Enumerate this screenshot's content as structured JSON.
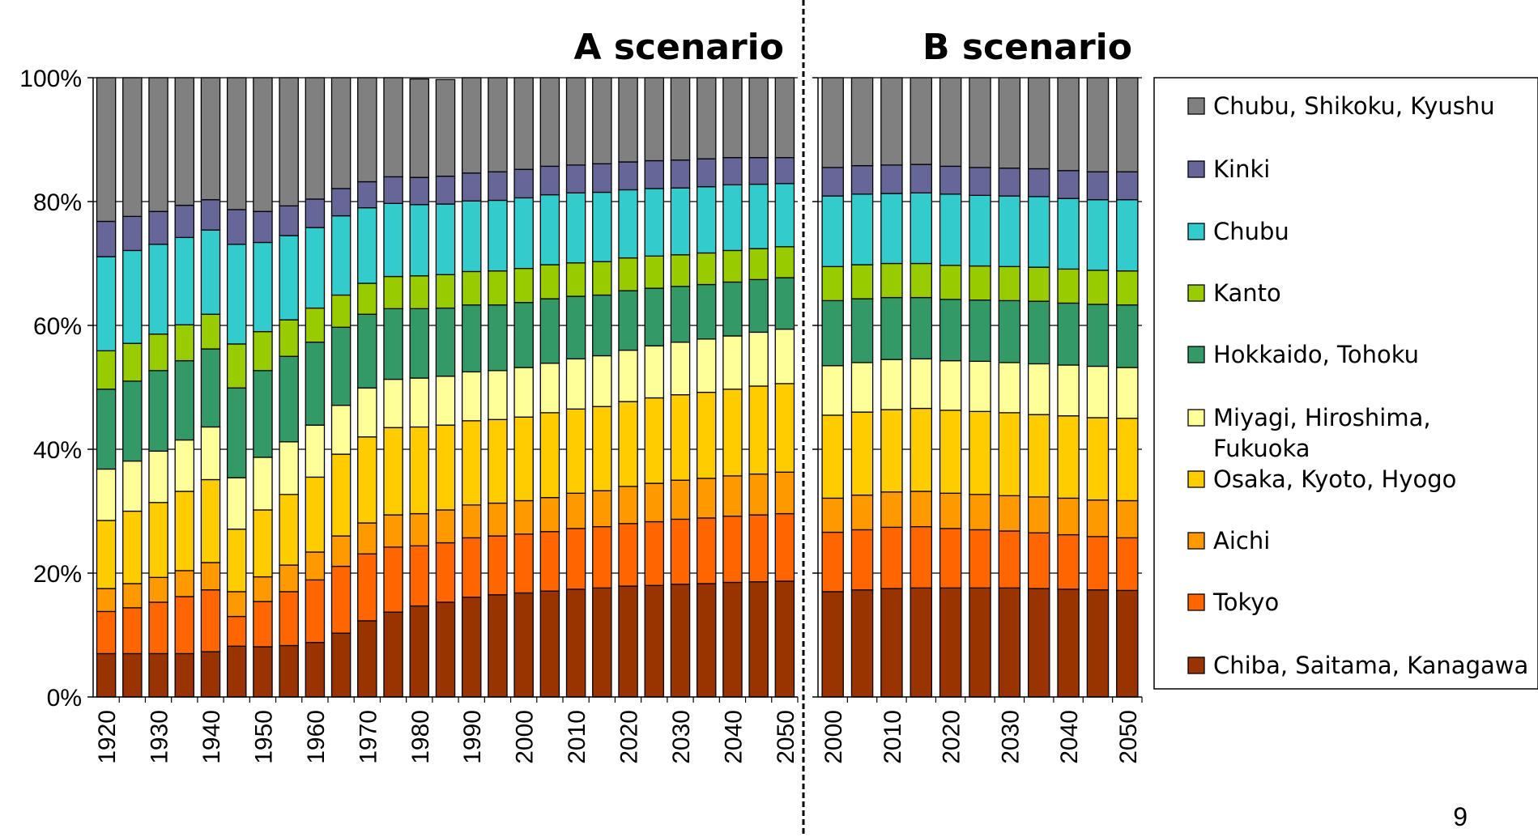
{
  "page": {
    "number": "9"
  },
  "colors": {
    "Chiba, Saitama, Kanagawa": "#993300",
    "Tokyo": "#ff6600",
    "Aichi": "#ff9900",
    "Osaka, Kyoto, Hyogo": "#ffcc00",
    "Miyagi, Hiroshima, Fukuoka": "#ffff99",
    "Hokkaido, Tohoku": "#339966",
    "Kanto": "#99cc00",
    "Chubu": "#33cccc",
    "Kinki": "#666699",
    "Chubu, Shikoku, Kyushu": "#808080"
  },
  "legend": {
    "items": [
      {
        "label": "Chubu, Shikoku, Kyushu",
        "lines": [
          "Chubu, Shikoku, Kyushu"
        ]
      },
      {
        "label": "Kinki",
        "lines": [
          "Kinki"
        ]
      },
      {
        "label": "Chubu",
        "lines": [
          "Chubu"
        ]
      },
      {
        "label": "Kanto",
        "lines": [
          "Kanto"
        ]
      },
      {
        "label": "Hokkaido, Tohoku",
        "lines": [
          "Hokkaido, Tohoku"
        ]
      },
      {
        "label": "Miyagi, Hiroshima, Fukuoka",
        "lines": [
          "Miyagi, Hiroshima,",
          "Fukuoka"
        ]
      },
      {
        "label": "Osaka, Kyoto, Hyogo",
        "lines": [
          "Osaka, Kyoto, Hyogo"
        ]
      },
      {
        "label": "Aichi",
        "lines": [
          "Aichi"
        ]
      },
      {
        "label": "Tokyo",
        "lines": [
          "Tokyo"
        ]
      },
      {
        "label": "Chiba, Saitama, Kanagawa",
        "lines": [
          "Chiba, Saitama, Kanagawa"
        ]
      }
    ]
  },
  "chart_data": [
    {
      "type": "bar",
      "stacked": "percent",
      "title": "A scenario",
      "ylim": [
        0,
        100
      ],
      "yticks": [
        "0%",
        "20%",
        "40%",
        "60%",
        "80%",
        "100%"
      ],
      "xtick_labels": [
        "1920",
        "1930",
        "1940",
        "1950",
        "1960",
        "1970",
        "1980",
        "1990",
        "2000",
        "2010",
        "2020",
        "2030",
        "2040",
        "2050"
      ],
      "categories": [
        1920,
        1925,
        1930,
        1935,
        1940,
        1945,
        1950,
        1955,
        1960,
        1965,
        1970,
        1975,
        1980,
        1985,
        1990,
        1995,
        2000,
        2005,
        2010,
        2015,
        2020,
        2025,
        2030,
        2035,
        2040,
        2045,
        2050
      ],
      "series": [
        {
          "name": "Chiba, Saitama, Kanagawa",
          "values": [
            7,
            7,
            7,
            7,
            7.3,
            8.2,
            8.1,
            8.3,
            8.8,
            10.3,
            12.3,
            13.7,
            14.7,
            15.3,
            16.1,
            16.5,
            16.8,
            17.1,
            17.4,
            17.6,
            17.9,
            18.0,
            18.2,
            18.3,
            18.5,
            18.6,
            18.7
          ]
        },
        {
          "name": "Tokyo",
          "values": [
            6.8,
            7.4,
            8.3,
            9.2,
            10.0,
            4.8,
            7.3,
            8.7,
            10.1,
            10.8,
            10.8,
            10.5,
            9.7,
            9.6,
            9.6,
            9.5,
            9.5,
            9.6,
            9.8,
            9.9,
            10.1,
            10.3,
            10.5,
            10.6,
            10.7,
            10.8,
            10.9
          ]
        },
        {
          "name": "Aichi",
          "values": [
            3.7,
            3.9,
            4.0,
            4.2,
            4.4,
            4.0,
            4.0,
            4.3,
            4.5,
            4.9,
            5.0,
            5.2,
            5.2,
            5.3,
            5.3,
            5.3,
            5.4,
            5.5,
            5.7,
            5.8,
            6.0,
            6.2,
            6.3,
            6.4,
            6.5,
            6.6,
            6.7
          ]
        },
        {
          "name": "Osaka, Kyoto, Hyogo",
          "values": [
            11.0,
            11.7,
            12.1,
            12.8,
            13.4,
            10.1,
            10.8,
            11.4,
            12.1,
            13.2,
            13.9,
            14.1,
            14.0,
            13.7,
            13.6,
            13.5,
            13.5,
            13.7,
            13.6,
            13.6,
            13.7,
            13.8,
            13.8,
            13.9,
            14.0,
            14.2,
            14.3
          ]
        },
        {
          "name": "Miyagi, Hiroshima, Fukuoka",
          "values": [
            8.3,
            8.1,
            8.3,
            8.3,
            8.5,
            8.3,
            8.5,
            8.5,
            8.4,
            7.9,
            7.9,
            7.8,
            7.9,
            7.9,
            7.9,
            7.9,
            8.0,
            8.0,
            8.1,
            8.2,
            8.3,
            8.4,
            8.5,
            8.6,
            8.6,
            8.7,
            8.8
          ]
        },
        {
          "name": "Hokkaido, Tohoku",
          "values": [
            12.9,
            12.9,
            13.0,
            12.8,
            12.6,
            14.5,
            14.0,
            13.8,
            13.4,
            12.6,
            11.9,
            11.4,
            11.2,
            11.0,
            10.8,
            10.6,
            10.5,
            10.4,
            10.1,
            9.8,
            9.6,
            9.3,
            9.0,
            8.8,
            8.7,
            8.5,
            8.3
          ]
        },
        {
          "name": "Kanto",
          "values": [
            6.2,
            6.1,
            5.9,
            5.8,
            5.6,
            7.1,
            6.3,
            5.9,
            5.5,
            5.2,
            5.0,
            5.2,
            5.3,
            5.4,
            5.4,
            5.5,
            5.5,
            5.5,
            5.4,
            5.4,
            5.3,
            5.2,
            5.1,
            5.1,
            5.1,
            5.0,
            5.0
          ]
        },
        {
          "name": "Chubu",
          "values": [
            15.2,
            15.0,
            14.5,
            14.1,
            13.6,
            16.1,
            14.4,
            13.6,
            13.0,
            12.8,
            12.2,
            11.8,
            11.5,
            11.4,
            11.4,
            11.4,
            11.4,
            11.3,
            11.3,
            11.2,
            11.0,
            10.9,
            10.8,
            10.7,
            10.6,
            10.4,
            10.2
          ]
        },
        {
          "name": "Kinki",
          "values": [
            5.7,
            5.5,
            5.3,
            5.2,
            4.9,
            5.6,
            5.0,
            4.8,
            4.6,
            4.4,
            4.2,
            4.3,
            4.4,
            4.5,
            4.5,
            4.6,
            4.6,
            4.6,
            4.5,
            4.6,
            4.5,
            4.5,
            4.5,
            4.5,
            4.4,
            4.3,
            4.2
          ]
        },
        {
          "name": "Chubu, Shikoku, Kyushu",
          "values": [
            23.2,
            22.4,
            21.6,
            20.6,
            19.7,
            21.3,
            21.6,
            20.7,
            19.6,
            17.9,
            16.8,
            16.0,
            15.9,
            15.6,
            15.4,
            15.2,
            14.8,
            14.3,
            14.1,
            13.9,
            13.6,
            13.4,
            13.3,
            13.1,
            12.9,
            12.9,
            12.9
          ]
        }
      ]
    },
    {
      "type": "bar",
      "stacked": "percent",
      "title": "B scenario",
      "ylim": [
        0,
        100
      ],
      "xtick_labels": [
        "2000",
        "2010",
        "2020",
        "2030",
        "2040",
        "2050"
      ],
      "categories": [
        2000,
        2005,
        2010,
        2015,
        2020,
        2025,
        2030,
        2035,
        2040,
        2045,
        2050
      ],
      "series": [
        {
          "name": "Chiba, Saitama, Kanagawa",
          "values": [
            17.0,
            17.3,
            17.5,
            17.6,
            17.6,
            17.6,
            17.6,
            17.5,
            17.4,
            17.3,
            17.2
          ]
        },
        {
          "name": "Tokyo",
          "values": [
            9.6,
            9.7,
            9.9,
            9.9,
            9.6,
            9.4,
            9.2,
            9.0,
            8.8,
            8.6,
            8.5
          ]
        },
        {
          "name": "Aichi",
          "values": [
            5.5,
            5.6,
            5.7,
            5.7,
            5.7,
            5.7,
            5.7,
            5.8,
            5.9,
            5.9,
            6.0
          ]
        },
        {
          "name": "Osaka, Kyoto, Hyogo",
          "values": [
            13.4,
            13.4,
            13.3,
            13.4,
            13.4,
            13.4,
            13.4,
            13.3,
            13.3,
            13.3,
            13.3
          ]
        },
        {
          "name": "Miyagi, Hiroshima, Fukuoka",
          "values": [
            8.0,
            8.0,
            8.1,
            8.0,
            8.0,
            8.1,
            8.1,
            8.2,
            8.2,
            8.3,
            8.2
          ]
        },
        {
          "name": "Hokkaido, Tohoku",
          "values": [
            10.5,
            10.3,
            10.0,
            9.9,
            9.9,
            9.9,
            10.0,
            10.1,
            10.0,
            10.0,
            10.1
          ]
        },
        {
          "name": "Kanto",
          "values": [
            5.5,
            5.5,
            5.5,
            5.5,
            5.5,
            5.5,
            5.5,
            5.5,
            5.5,
            5.5,
            5.5
          ]
        },
        {
          "name": "Chubu",
          "values": [
            11.4,
            11.4,
            11.3,
            11.4,
            11.5,
            11.4,
            11.4,
            11.4,
            11.4,
            11.4,
            11.5
          ]
        },
        {
          "name": "Kinki",
          "values": [
            4.6,
            4.6,
            4.6,
            4.6,
            4.5,
            4.5,
            4.5,
            4.5,
            4.5,
            4.5,
            4.5
          ]
        },
        {
          "name": "Chubu, Shikoku, Kyushu",
          "values": [
            14.5,
            14.2,
            14.1,
            14.0,
            14.3,
            14.5,
            14.6,
            14.7,
            15.0,
            15.2,
            15.2
          ]
        }
      ]
    }
  ]
}
